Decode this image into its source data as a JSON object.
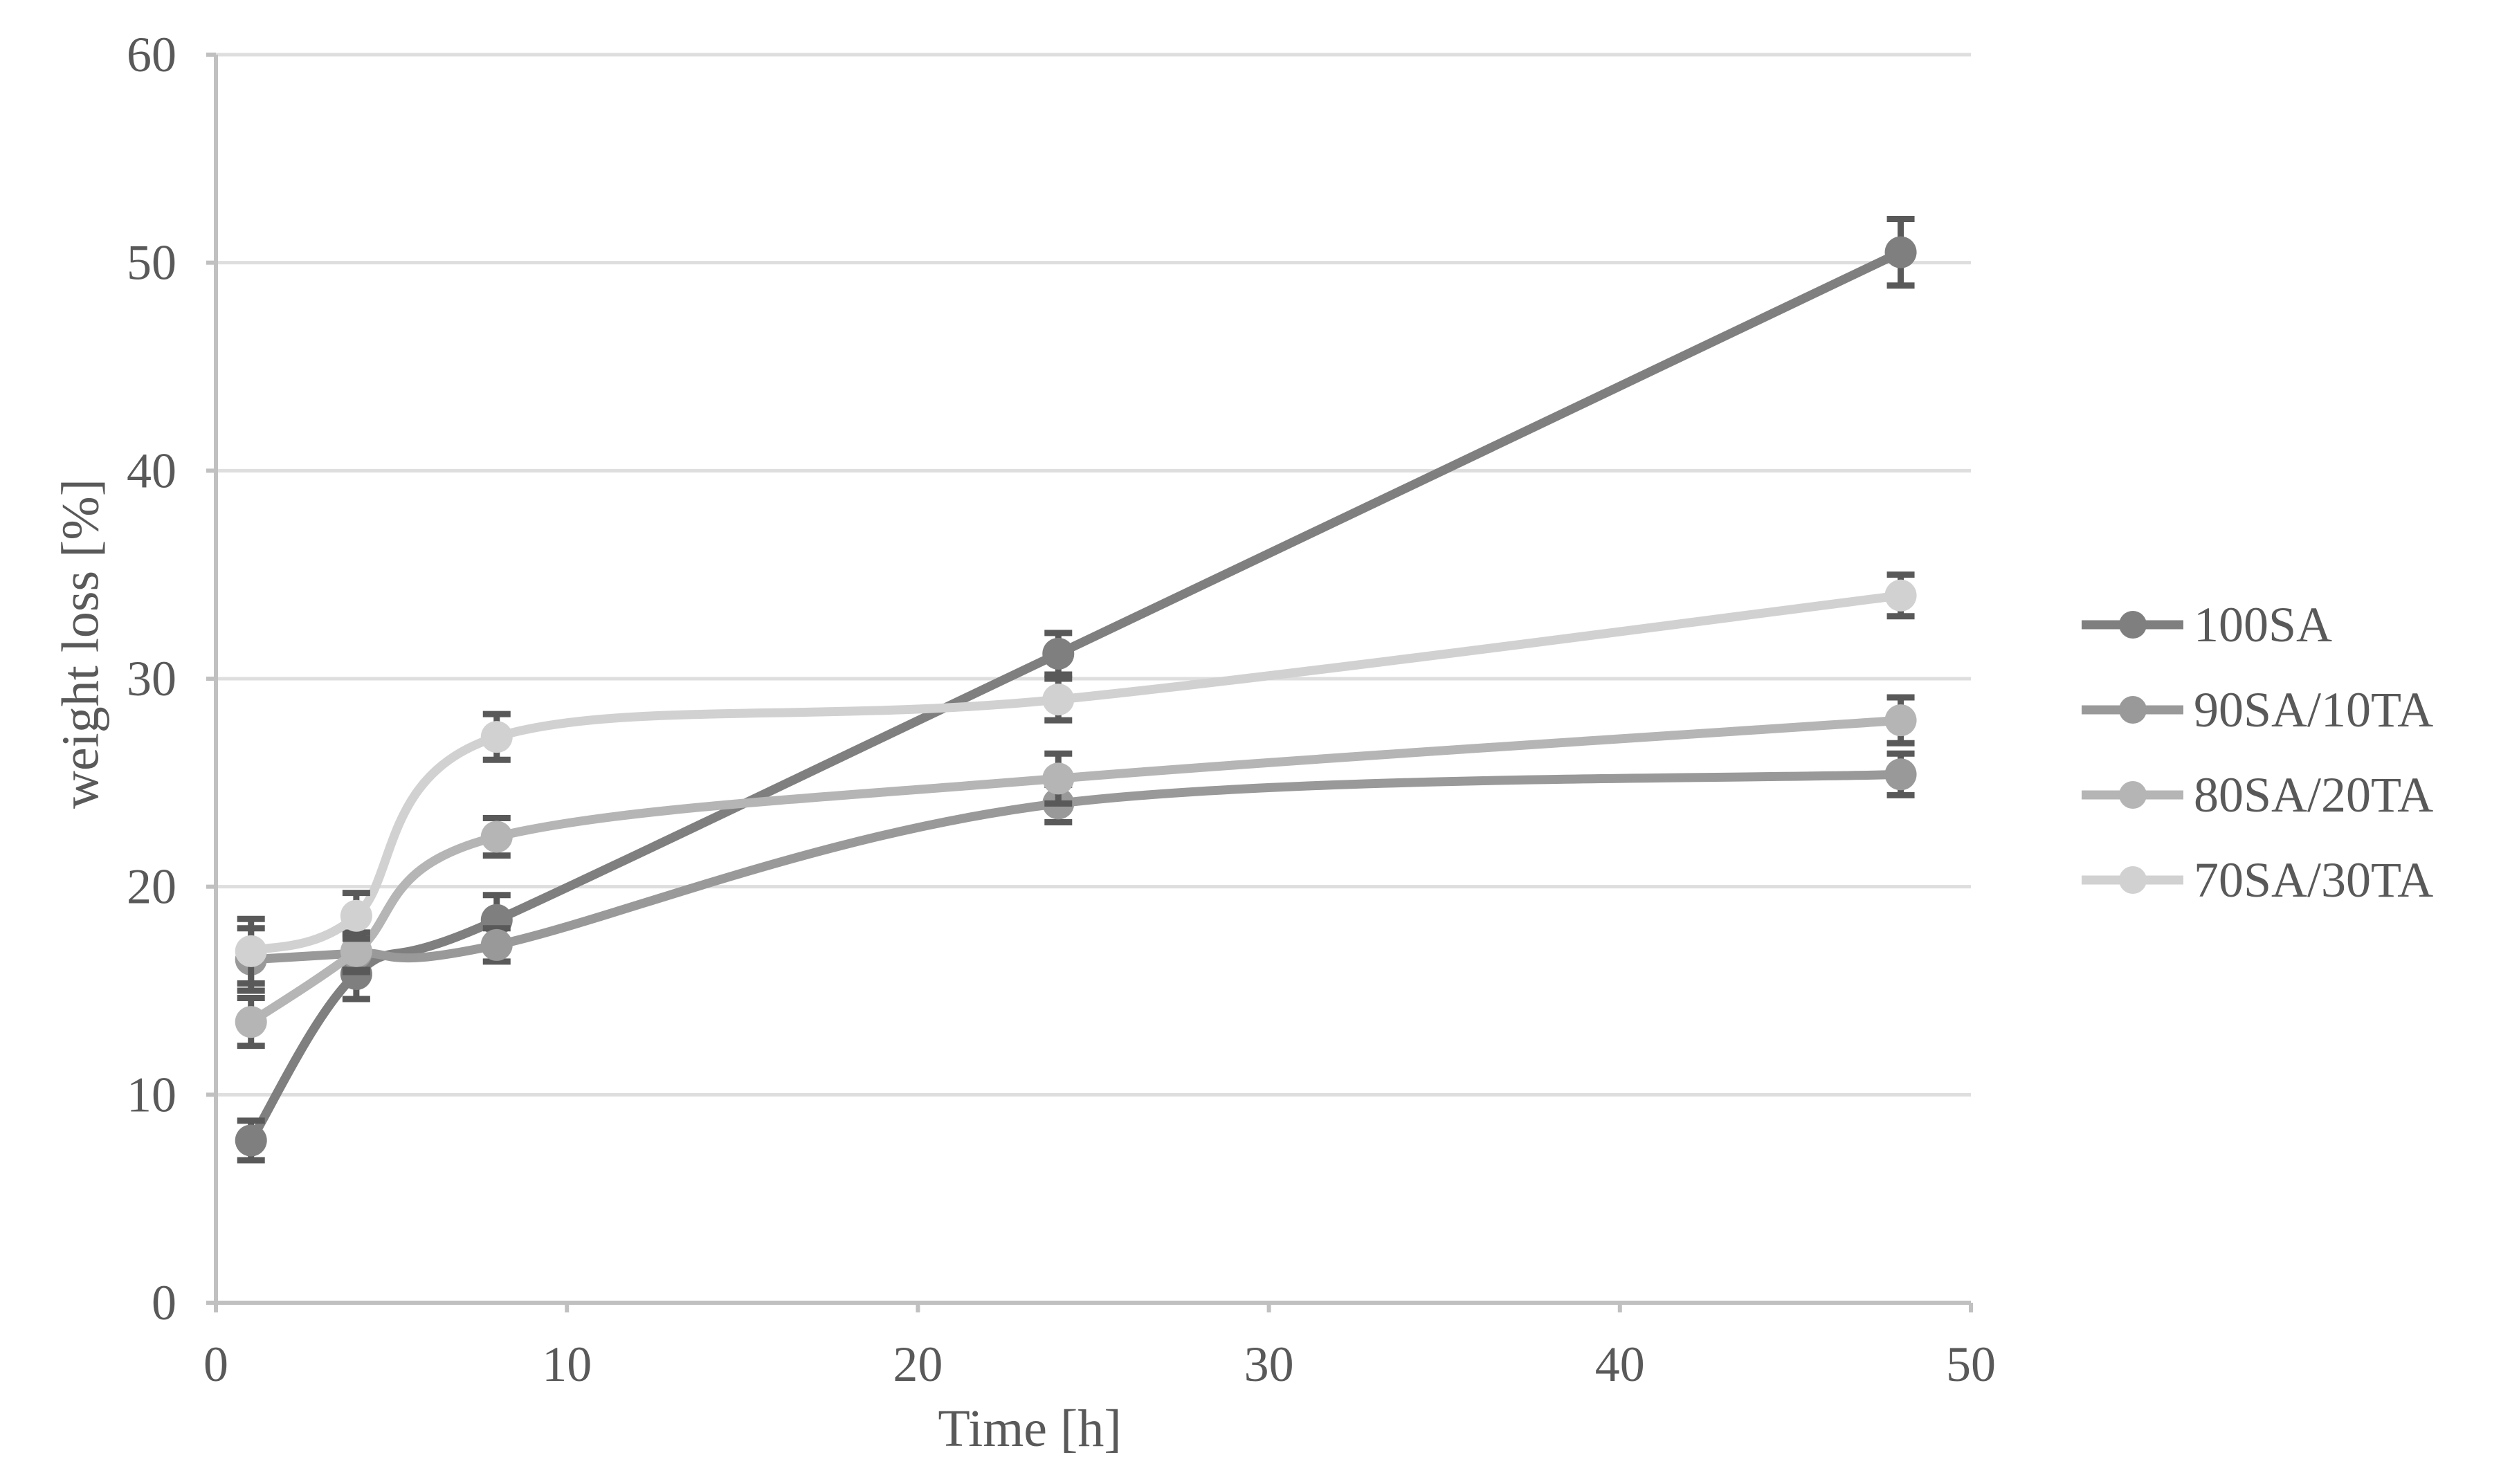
{
  "chart_data": {
    "type": "line",
    "title": "",
    "xlabel": "Time [h]",
    "ylabel": "weight loss [%]",
    "x": [
      1,
      4,
      8,
      24,
      48
    ],
    "xlim": [
      0,
      50
    ],
    "ylim": [
      0,
      60
    ],
    "x_ticks": [
      0,
      10,
      20,
      30,
      40,
      50
    ],
    "y_ticks": [
      0,
      10,
      20,
      30,
      40,
      50,
      60
    ],
    "grid": "horizontal",
    "smooth": true,
    "marker": "circle",
    "error_bars": true,
    "legend_position": "right",
    "series": [
      {
        "name": "100SA",
        "color": "#7f7f7f",
        "values": [
          7.8,
          15.8,
          18.4,
          31.2,
          50.5
        ],
        "errors": [
          0.95,
          1.2,
          1.2,
          1.0,
          1.6
        ]
      },
      {
        "name": "90SA/10TA",
        "color": "#999999",
        "values": [
          16.5,
          16.8,
          17.2,
          24.0,
          25.4
        ],
        "errors": [
          1.5,
          0.9,
          0.8,
          0.9,
          1.0
        ]
      },
      {
        "name": "80SA/20TA",
        "color": "#b5b5b5",
        "values": [
          13.5,
          16.9,
          22.4,
          25.2,
          28.0
        ],
        "errors": [
          1.15,
          0.9,
          0.9,
          1.2,
          1.1
        ]
      },
      {
        "name": "70SA/30TA",
        "color": "#d1d1d1",
        "values": [
          16.9,
          18.6,
          27.2,
          29.0,
          34.0
        ],
        "errors": [
          1.55,
          1.1,
          1.1,
          1.0,
          1.0
        ]
      }
    ],
    "colors": {
      "grid": "#dedede",
      "axis": "#c0c0c0",
      "text": "#595959",
      "error_bar": "#595959",
      "background": "#ffffff"
    }
  }
}
